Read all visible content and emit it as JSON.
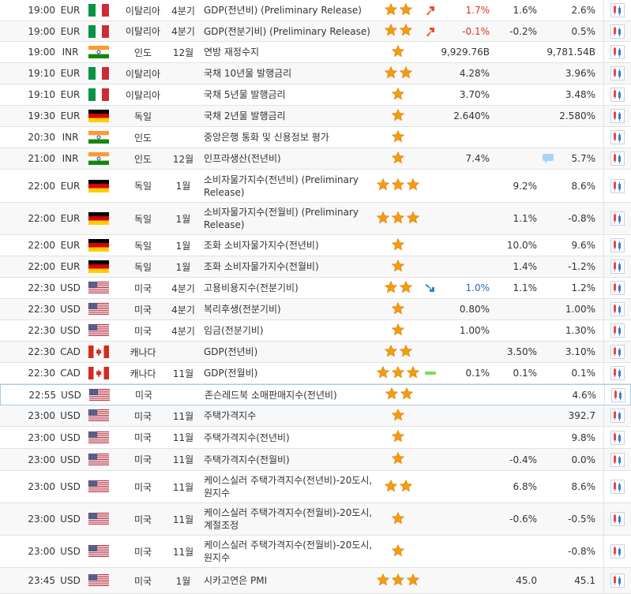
{
  "colors": {
    "star": "#f39c12",
    "up_arrow": "#e8502b",
    "down_arrow": "#1e88d6",
    "red_text": "#e0301e",
    "blue_text": "#2a6ebb",
    "bar_green": "#7ed957",
    "bubble": "#a8d4f5"
  },
  "rows": [
    {
      "time": "19:00",
      "currency": "EUR",
      "flag": "italy",
      "country": "이탈리아",
      "period": "4분기",
      "event": "GDP(전년비) (Preliminary Release)",
      "stars": 2,
      "trend": "up-arrow-icon",
      "actual": "1.7%",
      "actual_color": "red",
      "forecast": "1.6%",
      "previous": "2.6%",
      "alt": false
    },
    {
      "time": "19:00",
      "currency": "EUR",
      "flag": "italy",
      "country": "이탈리아",
      "period": "4분기",
      "event": "GDP(전분기비) (Preliminary Release)",
      "stars": 2,
      "trend": "up-arrow-icon",
      "actual": "-0.1%",
      "actual_color": "red",
      "forecast": "-0.2%",
      "previous": "0.5%",
      "alt": true
    },
    {
      "time": "19:00",
      "currency": "INR",
      "flag": "india",
      "country": "인도",
      "period": "12월",
      "event": "연방 재정수지",
      "stars": 1,
      "actual": "9,929.76B",
      "forecast": "",
      "previous": "9,781.54B",
      "alt": false
    },
    {
      "time": "19:10",
      "currency": "EUR",
      "flag": "italy",
      "country": "이탈리아",
      "period": "",
      "event": "국채 10년물 발행금리",
      "stars": 2,
      "actual": "4.28%",
      "forecast": "",
      "previous": "3.96%",
      "alt": true
    },
    {
      "time": "19:10",
      "currency": "EUR",
      "flag": "italy",
      "country": "이탈리아",
      "period": "",
      "event": "국채 5년물 발행금리",
      "stars": 1,
      "actual": "3.70%",
      "forecast": "",
      "previous": "3.48%",
      "alt": false
    },
    {
      "time": "19:30",
      "currency": "EUR",
      "flag": "germany",
      "country": "독일",
      "period": "",
      "event": "국채 2년물 발행금리",
      "stars": 1,
      "actual": "2.640%",
      "forecast": "",
      "previous": "2.580%",
      "alt": true
    },
    {
      "time": "20:30",
      "currency": "INR",
      "flag": "india",
      "country": "인도",
      "period": "",
      "event": "중앙은행 통화 및 신용정보 평가",
      "stars": 1,
      "actual": "",
      "forecast": "",
      "previous": "",
      "alt": false
    },
    {
      "time": "21:00",
      "currency": "INR",
      "flag": "india",
      "country": "인도",
      "period": "12월",
      "event": "인프라생산(전년비)",
      "stars": 1,
      "actual": "7.4%",
      "forecast": "",
      "bubble": true,
      "previous": "5.7%",
      "alt": true
    },
    {
      "time": "22:00",
      "currency": "EUR",
      "flag": "germany",
      "country": "독일",
      "period": "1월",
      "event": "소비자물가지수(전년비) (Preliminary Release)",
      "stars": 3,
      "actual": "",
      "forecast": "9.2%",
      "previous": "8.6%",
      "alt": false
    },
    {
      "time": "22:00",
      "currency": "EUR",
      "flag": "germany",
      "country": "독일",
      "period": "1월",
      "event": "소비자물가지수(전월비) (Preliminary Release)",
      "stars": 3,
      "actual": "",
      "forecast": "1.1%",
      "previous": "-0.8%",
      "alt": true
    },
    {
      "time": "22:00",
      "currency": "EUR",
      "flag": "germany",
      "country": "독일",
      "period": "1월",
      "event": "조화 소비자물가지수(전년비)",
      "stars": 1,
      "actual": "",
      "forecast": "10.0%",
      "previous": "9.6%",
      "alt": false
    },
    {
      "time": "22:00",
      "currency": "EUR",
      "flag": "germany",
      "country": "독일",
      "period": "1월",
      "event": "조화 소비자물가지수(전월비)",
      "stars": 1,
      "actual": "",
      "forecast": "1.4%",
      "previous": "-1.2%",
      "alt": true
    },
    {
      "time": "22:30",
      "currency": "USD",
      "flag": "usa",
      "country": "미국",
      "period": "4분기",
      "event": "고용비용지수(전분기비)",
      "stars": 2,
      "trend": "down-arrow-icon",
      "actual": "1.0%",
      "actual_color": "blue",
      "forecast": "1.1%",
      "previous": "1.2%",
      "alt": false
    },
    {
      "time": "22:30",
      "currency": "USD",
      "flag": "usa",
      "country": "미국",
      "period": "4분기",
      "event": "복리후생(전분기비)",
      "stars": 1,
      "actual": "0.80%",
      "forecast": "",
      "previous": "1.00%",
      "alt": true
    },
    {
      "time": "22:30",
      "currency": "USD",
      "flag": "usa",
      "country": "미국",
      "period": "4분기",
      "event": "임금(전분기비)",
      "stars": 1,
      "actual": "1.00%",
      "forecast": "",
      "previous": "1.30%",
      "alt": false
    },
    {
      "time": "22:30",
      "currency": "CAD",
      "flag": "canada",
      "country": "캐나다",
      "period": "",
      "event": "GDP(전년비)",
      "stars": 2,
      "actual": "",
      "forecast": "3.50%",
      "previous": "3.10%",
      "alt": true
    },
    {
      "time": "22:30",
      "currency": "CAD",
      "flag": "canada",
      "country": "캐나다",
      "period": "11월",
      "event": "GDP(전월비)",
      "stars": 3,
      "trend": "neutral-bar-icon",
      "actual": "0.1%",
      "forecast": "0.1%",
      "previous": "0.1%",
      "alt": false
    },
    {
      "time": "22:55",
      "currency": "USD",
      "flag": "usa",
      "country": "미국",
      "period": "",
      "event": "존슨레드북 소매판매지수(전년비)",
      "stars": 2,
      "actual": "",
      "forecast": "",
      "previous": "4.6%",
      "alt": false,
      "highlight": true
    },
    {
      "time": "23:00",
      "currency": "USD",
      "flag": "usa",
      "country": "미국",
      "period": "11월",
      "event": "주택가격지수",
      "stars": 1,
      "actual": "",
      "forecast": "",
      "previous": "392.7",
      "alt": true
    },
    {
      "time": "23:00",
      "currency": "USD",
      "flag": "usa",
      "country": "미국",
      "period": "11월",
      "event": "주택가격지수(전년비)",
      "stars": 1,
      "actual": "",
      "forecast": "",
      "previous": "9.8%",
      "alt": false
    },
    {
      "time": "23:00",
      "currency": "USD",
      "flag": "usa",
      "country": "미국",
      "period": "11월",
      "event": "주택가격지수(전월비)",
      "stars": 1,
      "actual": "",
      "forecast": "-0.4%",
      "previous": "0.0%",
      "alt": true
    },
    {
      "time": "23:00",
      "currency": "USD",
      "flag": "usa",
      "country": "미국",
      "period": "11월",
      "event": "케이스실러 주택가격지수(전년비)-20도시,원지수",
      "stars": 2,
      "actual": "",
      "forecast": "6.8%",
      "previous": "8.6%",
      "alt": false
    },
    {
      "time": "23:00",
      "currency": "USD",
      "flag": "usa",
      "country": "미국",
      "period": "11월",
      "event": "케이스실러 주택가격지수(전월비)-20도시,계절조정",
      "stars": 1,
      "actual": "",
      "forecast": "-0.6%",
      "previous": "-0.5%",
      "alt": true
    },
    {
      "time": "23:00",
      "currency": "USD",
      "flag": "usa",
      "country": "미국",
      "period": "11월",
      "event": "케이스실러 주택가격지수(전월비)-20도시,원지수",
      "stars": 1,
      "actual": "",
      "forecast": "",
      "previous": "-0.8%",
      "alt": false
    },
    {
      "time": "23:45",
      "currency": "USD",
      "flag": "usa",
      "country": "미국",
      "period": "1월",
      "event": "시카고연은 PMI",
      "stars": 3,
      "actual": "",
      "forecast": "45.0",
      "previous": "45.1",
      "alt": true
    }
  ]
}
